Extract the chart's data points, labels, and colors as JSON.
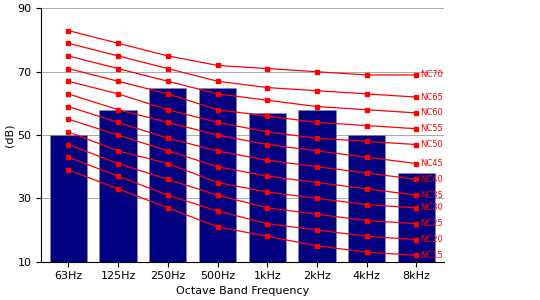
{
  "freqs": [
    "63Hz",
    "125Hz",
    "250Hz",
    "500Hz",
    "1kHz",
    "2kHz",
    "4kHz",
    "8kHz"
  ],
  "bar_tops": [
    50,
    58,
    65,
    65,
    57,
    58,
    50,
    38
  ],
  "bar_color": "#000080",
  "bar_edge_color": "#8888aa",
  "nc_curves": {
    "NC70": [
      83,
      79,
      75,
      72,
      71,
      70,
      69,
      69
    ],
    "NC65": [
      79,
      75,
      71,
      67,
      65,
      64,
      63,
      62
    ],
    "NC60": [
      75,
      71,
      67,
      63,
      61,
      59,
      58,
      57
    ],
    "NC55": [
      71,
      67,
      63,
      58,
      56,
      54,
      53,
      52
    ],
    "NC50": [
      67,
      63,
      58,
      54,
      51,
      49,
      48,
      47
    ],
    "NC45": [
      63,
      58,
      54,
      50,
      47,
      45,
      43,
      41
    ],
    "NC40": [
      59,
      54,
      49,
      45,
      42,
      40,
      38,
      36
    ],
    "NC35": [
      55,
      50,
      45,
      40,
      37,
      35,
      33,
      31
    ],
    "NC30": [
      51,
      45,
      41,
      35,
      32,
      30,
      28,
      27
    ],
    "NC25": [
      47,
      41,
      36,
      31,
      27,
      25,
      23,
      22
    ],
    "NC20": [
      43,
      37,
      31,
      26,
      22,
      20,
      18,
      17
    ],
    "NC15": [
      39,
      33,
      27,
      21,
      18,
      15,
      13,
      12
    ]
  },
  "nc_labels": [
    "NC70",
    "NC65",
    "NC60",
    "NC55",
    "NC50",
    "NC45",
    "NC40",
    "NC35",
    "NC30",
    "NC25",
    "NC20",
    "NC15"
  ],
  "line_color": "#ff0000",
  "marker_style": "s",
  "marker_size": 3,
  "ylim": [
    10,
    90
  ],
  "yticks": [
    10,
    30,
    50,
    70,
    90
  ],
  "ylabel": "(dB)",
  "xlabel": "Octave Band Frequency",
  "grid_color": "#aaaaaa",
  "background_color": "#ffffff",
  "label_fontsize": 6,
  "axis_fontsize": 8,
  "figsize": [
    5.4,
    3.0
  ],
  "dpi": 100
}
